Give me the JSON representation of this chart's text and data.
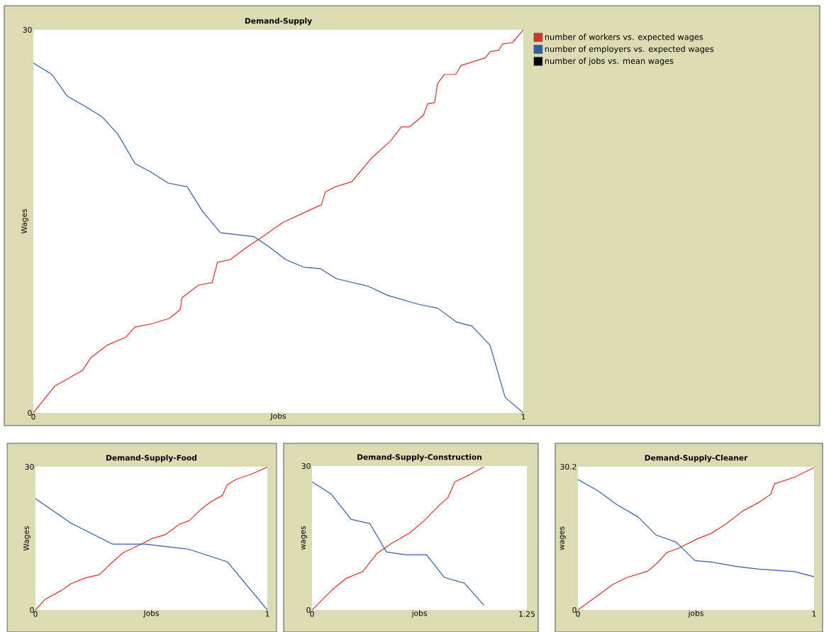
{
  "chart_data": [
    {
      "type": "line",
      "title": "Demand-Supply",
      "xlabel": "Jobs",
      "ylabel": "Wages",
      "xlim": [
        0,
        1
      ],
      "ylim": [
        0,
        30
      ],
      "xticks": [
        0,
        1
      ],
      "yticks": [
        0,
        30
      ],
      "legend": "right",
      "series": [
        {
          "name": "number of workers vs. expected wages",
          "color": "#d73229",
          "x": [
            0,
            0.044,
            0.081,
            0.1,
            0.117,
            0.151,
            0.188,
            0.207,
            0.244,
            0.278,
            0.3,
            0.303,
            0.337,
            0.365,
            0.376,
            0.402,
            0.433,
            0.472,
            0.509,
            0.554,
            0.588,
            0.596,
            0.616,
            0.65,
            0.689,
            0.729,
            0.751,
            0.768,
            0.796,
            0.805,
            0.819,
            0.825,
            0.839,
            0.862,
            0.873,
            0.922,
            0.933,
            0.95,
            0.958,
            0.978,
            1.0
          ],
          "values": [
            0,
            2.1,
            2.9,
            3.3,
            4.3,
            5.3,
            5.9,
            6.7,
            7.0,
            7.4,
            8.1,
            9.0,
            10.0,
            10.2,
            11.8,
            12.0,
            12.9,
            13.9,
            14.9,
            15.7,
            16.3,
            17.3,
            17.7,
            18.1,
            19.9,
            21.3,
            22.4,
            22.4,
            23.3,
            24.2,
            24.3,
            25.8,
            26.5,
            26.5,
            27.2,
            27.8,
            28.3,
            28.4,
            28.9,
            29.0,
            30
          ]
        },
        {
          "name": "number of employers vs. expected wages",
          "color": "#345da9",
          "x": [
            0,
            0.038,
            0.069,
            0.106,
            0.14,
            0.173,
            0.208,
            0.238,
            0.275,
            0.314,
            0.345,
            0.382,
            0.45,
            0.481,
            0.515,
            0.552,
            0.585,
            0.619,
            0.684,
            0.723,
            0.786,
            0.825,
            0.864,
            0.895,
            0.932,
            0.963,
            1.0
          ],
          "values": [
            27.4,
            26.5,
            24.8,
            24.0,
            23.2,
            21.8,
            19.5,
            18.9,
            18.0,
            17.7,
            15.8,
            14.1,
            13.8,
            13.0,
            12.0,
            11.4,
            11.3,
            10.5,
            9.9,
            9.2,
            8.5,
            8.2,
            7.1,
            6.8,
            5.3,
            1.2,
            0
          ]
        },
        {
          "name": "number of jobs vs. mean wages",
          "color": "#000000"
        }
      ]
    },
    {
      "type": "line",
      "title": "Demand-Supply-Food",
      "xlabel": "Jobs",
      "ylabel": "Wages",
      "xlim": [
        0,
        1
      ],
      "ylim": [
        0,
        30
      ],
      "xticks": [
        0,
        1
      ],
      "yticks": [
        0,
        30
      ],
      "series": [
        {
          "color": "#d73229",
          "x": [
            0,
            0.041,
            0.112,
            0.153,
            0.214,
            0.276,
            0.327,
            0.378,
            0.439,
            0.5,
            0.561,
            0.622,
            0.663,
            0.714,
            0.755,
            0.806,
            0.827,
            0.867,
            0.929,
            1.0
          ],
          "values": [
            0,
            2.2,
            4.1,
            5.5,
            6.7,
            7.4,
            9.8,
            12.0,
            13.4,
            14.9,
            15.8,
            18.0,
            18.7,
            21.1,
            22.6,
            24.0,
            26.2,
            27.4,
            28.4,
            29.9
          ]
        },
        {
          "color": "#345da9",
          "x": [
            0,
            0.153,
            0.332,
            0.474,
            0.663,
            0.827,
            1.0
          ],
          "values": [
            23.3,
            18.2,
            13.8,
            13.8,
            12.7,
            10.1,
            0
          ]
        }
      ]
    },
    {
      "type": "line",
      "title": "Demand-Supply-Construction",
      "xlabel": "jobs",
      "ylabel": "wages",
      "xlim": [
        0,
        1.25
      ],
      "ylim": [
        0,
        30
      ],
      "xticks": [
        0,
        1.25
      ],
      "yticks": [
        0,
        30
      ],
      "series": [
        {
          "color": "#d73229",
          "x": [
            0,
            0.117,
            0.199,
            0.295,
            0.378,
            0.46,
            0.57,
            0.652,
            0.734,
            0.79,
            0.831,
            0.913,
            1.0
          ],
          "values": [
            0,
            4.2,
            6.6,
            8.0,
            11.8,
            13.8,
            16.1,
            18.6,
            21.6,
            23.4,
            26.7,
            28.1,
            29.8
          ]
        },
        {
          "color": "#345da9",
          "x": [
            0,
            0.11,
            0.227,
            0.337,
            0.433,
            0.543,
            0.666,
            0.769,
            0.886,
            1.0
          ],
          "values": [
            26.7,
            24.2,
            18.9,
            18.0,
            12.1,
            11.5,
            11.5,
            6.8,
            5.6,
            1.0
          ]
        }
      ]
    },
    {
      "type": "line",
      "title": "Demand-Supply-Cleaner",
      "xlabel": "jobs",
      "ylabel": "wages",
      "xlim": [
        0,
        1
      ],
      "ylim": [
        0,
        30.2
      ],
      "xticks": [
        0,
        1
      ],
      "yticks": [
        0,
        30.2
      ],
      "series": [
        {
          "color": "#d73229",
          "x": [
            0,
            0.085,
            0.145,
            0.205,
            0.296,
            0.336,
            0.376,
            0.426,
            0.506,
            0.566,
            0.626,
            0.696,
            0.767,
            0.817,
            0.832,
            0.917,
            1.0
          ],
          "values": [
            0,
            3.1,
            5.3,
            6.8,
            8.2,
            9.9,
            12.1,
            13.0,
            15.0,
            16.2,
            18.1,
            20.8,
            22.7,
            24.4,
            26.6,
            28.0,
            30.0
          ]
        },
        {
          "color": "#345da9",
          "x": [
            0,
            0.085,
            0.165,
            0.255,
            0.331,
            0.416,
            0.496,
            0.566,
            0.666,
            0.767,
            0.917,
            1.0
          ],
          "values": [
            27.5,
            25.1,
            22.2,
            19.6,
            15.8,
            14.3,
            10.4,
            10.1,
            9.2,
            8.6,
            8.1,
            7.0
          ]
        }
      ]
    }
  ]
}
